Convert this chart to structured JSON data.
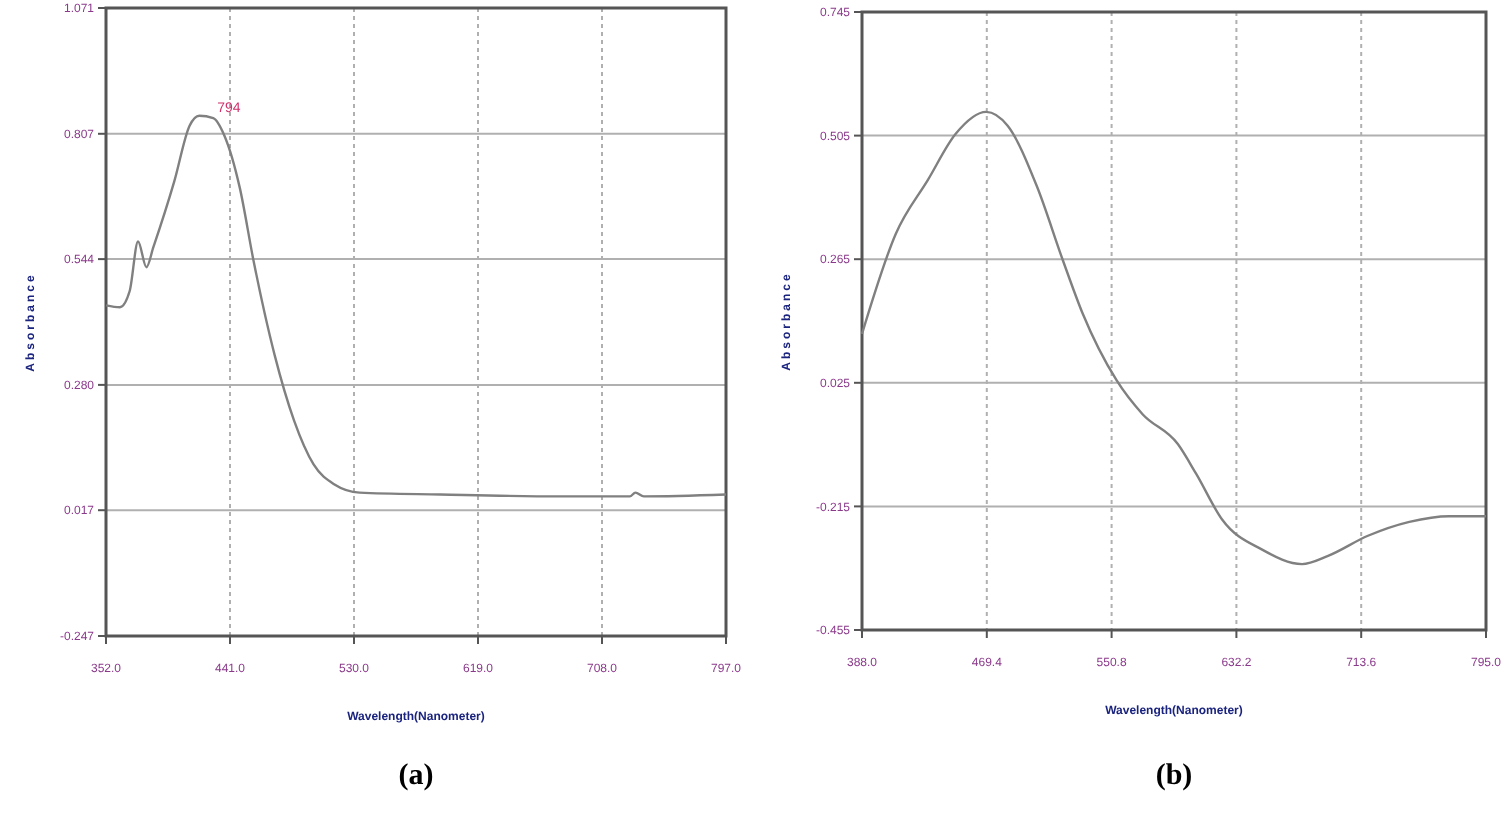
{
  "chart_data": [
    {
      "type": "line",
      "xlabel": "Wavelength(Nanometer)",
      "ylabel": "Absorbance",
      "grid": true,
      "xlim": [
        352,
        797
      ],
      "ylim": [
        -0.247,
        1.071
      ],
      "xticks": [
        {
          "value": 352,
          "label": "352.0"
        },
        {
          "value": 441,
          "label": "441.0"
        },
        {
          "value": 530,
          "label": "530.0"
        },
        {
          "value": 619,
          "label": "619.0"
        },
        {
          "value": 708,
          "label": "708.0"
        },
        {
          "value": 797,
          "label": "797.0"
        }
      ],
      "yticks": [
        -0.247,
        0.017,
        {
          "value": 0.28,
          "label": "0.280"
        },
        0.544,
        0.807,
        1.071
      ],
      "x": [
        352,
        362,
        369,
        375,
        381,
        386,
        401,
        412,
        419,
        429,
        437,
        448,
        458,
        473,
        487,
        501,
        516,
        534,
        592,
        678,
        728,
        732,
        738,
        797
      ],
      "series": [
        {
          "color": "#808080",
          "values": [
            0.447,
            0.443,
            0.477,
            0.581,
            0.527,
            0.569,
            0.707,
            0.824,
            0.845,
            0.84,
            0.803,
            0.694,
            0.539,
            0.343,
            0.205,
            0.113,
            0.071,
            0.054,
            0.05,
            0.046,
            0.046,
            0.054,
            0.046,
            0.05
          ]
        }
      ],
      "annotations": [
        {
          "text": "794",
          "x": 429,
          "y": 0.845
        },
        "(a)"
      ]
    },
    {
      "type": "line",
      "xlabel": "Wavelength(Nanometer)",
      "ylabel": "Absorbance",
      "grid": true,
      "xlim": [
        388,
        795
      ],
      "ylim": [
        -0.455,
        0.745
      ],
      "xticks": [
        {
          "value": 388,
          "label": "388.0"
        },
        {
          "value": 469.4,
          "label": "469.4"
        },
        {
          "value": 550.8,
          "label": "550.8"
        },
        {
          "value": 632.2,
          "label": "632.2"
        },
        {
          "value": 713.6,
          "label": "713.6"
        },
        {
          "value": 795,
          "label": "795.0"
        }
      ],
      "yticks": [
        -0.455,
        -0.215,
        0.025,
        0.265,
        0.505,
        0.745
      ],
      "x": [
        388,
        410,
        431,
        449,
        469,
        483,
        502,
        519,
        532,
        554,
        571,
        594,
        606,
        623,
        649,
        675,
        692,
        718,
        745,
        771,
        795
      ],
      "series": [
        {
          "color": "#808080",
          "values": [
            0.12,
            0.314,
            0.419,
            0.508,
            0.551,
            0.524,
            0.407,
            0.263,
            0.159,
            0.03,
            -0.036,
            -0.094,
            -0.152,
            -0.241,
            -0.299,
            -0.327,
            -0.311,
            -0.272,
            -0.245,
            -0.234,
            -0.234
          ]
        }
      ],
      "annotations": [
        "(b)"
      ]
    }
  ]
}
